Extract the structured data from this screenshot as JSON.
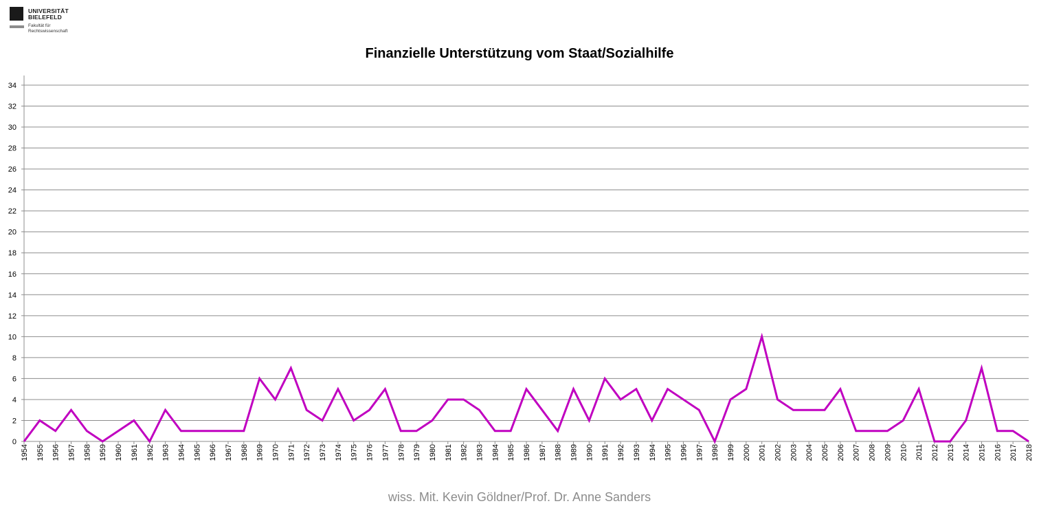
{
  "logo": {
    "line1": "UNIVERSITÄT",
    "line2": "BIELEFELD",
    "sub1": "Fakultät für",
    "sub2": "Rechtswissenschaft"
  },
  "footer": "wiss. Mit. Kevin Göldner/Prof.  Dr. Anne Sanders",
  "colors": {
    "series": "#c000c0",
    "grid": "#8c8c8c",
    "axis": "#000000"
  },
  "chart_data": {
    "type": "line",
    "title": "Finanzielle Unterstützung vom Staat/Sozialhilfe",
    "xlabel": "",
    "ylabel": "",
    "ylim": [
      0,
      34
    ],
    "y_ticks": [
      0,
      2,
      4,
      6,
      8,
      10,
      12,
      14,
      16,
      18,
      20,
      22,
      24,
      26,
      28,
      30,
      32,
      34
    ],
    "grid": true,
    "legend": "none",
    "x": [
      "1954",
      "1955",
      "1956",
      "1957",
      "1958",
      "1959",
      "1960",
      "1961",
      "1962",
      "1963",
      "1964",
      "1965",
      "1966",
      "1967",
      "1968",
      "1969",
      "1970",
      "1971",
      "1972",
      "1973",
      "1974",
      "1975",
      "1976",
      "1977",
      "1978",
      "1979",
      "1980",
      "1981",
      "1982",
      "1983",
      "1984",
      "1985",
      "1986",
      "1987",
      "1988",
      "1989",
      "1990",
      "1991",
      "1992",
      "1993",
      "1994",
      "1995",
      "1996",
      "1997",
      "1998",
      "1999",
      "2000",
      "2001",
      "2002",
      "2003",
      "2004",
      "2005",
      "2006",
      "2007",
      "2008",
      "2009",
      "2010",
      "2011",
      "2012",
      "2013",
      "2014",
      "2015",
      "2016",
      "2017",
      "2018"
    ],
    "series": [
      {
        "values": [
          0,
          2,
          1,
          3,
          1,
          0,
          1,
          2,
          0,
          3,
          1,
          1,
          1,
          1,
          1,
          6,
          4,
          7,
          3,
          2,
          5,
          2,
          3,
          5,
          1,
          1,
          2,
          4,
          4,
          3,
          1,
          1,
          5,
          3,
          1,
          5,
          2,
          6,
          4,
          5,
          2,
          5,
          4,
          3,
          0,
          4,
          5,
          10,
          4,
          3,
          3,
          3,
          5,
          1,
          1,
          1,
          2,
          5,
          0,
          0,
          2,
          7,
          1,
          1,
          0
        ]
      }
    ]
  }
}
